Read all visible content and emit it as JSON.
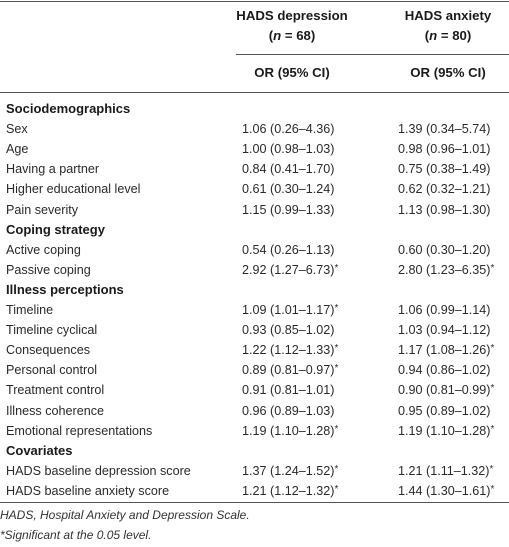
{
  "columns": [
    {
      "title": "HADS depression",
      "n_prefix": "(",
      "n_var": "n",
      "n_value": " = 68)",
      "stat": "OR (95% CI)"
    },
    {
      "title": "HADS anxiety",
      "n_prefix": "(",
      "n_var": "n",
      "n_value": " = 80)",
      "stat": "OR (95% CI)"
    }
  ],
  "sections": [
    {
      "title": "Sociodemographics",
      "rows": [
        {
          "label": "Sex",
          "v1": "1.06 (0.26–4.36)",
          "s1": "",
          "v2": "1.39 (0.34–5.74)",
          "s2": ""
        },
        {
          "label": "Age",
          "v1": "1.00 (0.98–1.03)",
          "s1": "",
          "v2": "0.98 (0.96–1.01)",
          "s2": ""
        },
        {
          "label": "Having a partner",
          "v1": "0.84 (0.41–1.70)",
          "s1": "",
          "v2": "0.75 (0.38–1.49)",
          "s2": ""
        },
        {
          "label": "Higher educational level",
          "v1": "0.61 (0.30–1.24)",
          "s1": "",
          "v2": "0.62 (0.32–1.21)",
          "s2": ""
        },
        {
          "label": "Pain severity",
          "v1": "1.15 (0.99–1.33)",
          "s1": "",
          "v2": "1.13 (0.98–1.30)",
          "s2": ""
        }
      ]
    },
    {
      "title": "Coping strategy",
      "rows": [
        {
          "label": "Active coping",
          "v1": "0.54 (0.26–1.13)",
          "s1": "",
          "v2": "0.60 (0.30–1.20)",
          "s2": ""
        },
        {
          "label": "Passive coping",
          "v1": "2.92 (1.27–6.73)",
          "s1": "*",
          "v2": "2.80 (1.23–6.35)",
          "s2": "*"
        }
      ]
    },
    {
      "title": "Illness perceptions",
      "rows": [
        {
          "label": "Timeline",
          "v1": "1.09 (1.01–1.17)",
          "s1": "*",
          "v2": "1.06 (0.99–1.14)",
          "s2": ""
        },
        {
          "label": "Timeline cyclical",
          "v1": "0.93 (0.85–1.02)",
          "s1": "",
          "v2": "1.03 (0.94–1.12)",
          "s2": ""
        },
        {
          "label": "Consequences",
          "v1": "1.22 (1.12–1.33)",
          "s1": "*",
          "v2": "1.17 (1.08–1.26)",
          "s2": "*"
        },
        {
          "label": "Personal control",
          "v1": "0.89 (0.81–0.97)",
          "s1": "*",
          "v2": "0.94 (0.86–1.02)",
          "s2": ""
        },
        {
          "label": "Treatment control",
          "v1": "0.91 (0.81–1.01)",
          "s1": "",
          "v2": "0.90 (0.81–0.99)",
          "s2": "*"
        },
        {
          "label": "Illness coherence",
          "v1": "0.96 (0.89–1.03)",
          "s1": "",
          "v2": "0.95 (0.89–1.02)",
          "s2": ""
        },
        {
          "label": "Emotional representations",
          "v1": "1.19 (1.10–1.28)",
          "s1": "*",
          "v2": "1.19 (1.10–1.28)",
          "s2": "*"
        }
      ]
    },
    {
      "title": "Covariates",
      "rows": [
        {
          "label": "HADS baseline depression score",
          "v1": "1.37 (1.24–1.52)",
          "s1": "*",
          "v2": "1.21 (1.11–1.32)",
          "s2": "*"
        },
        {
          "label": "HADS baseline anxiety score",
          "v1": "1.21 (1.12–1.32)",
          "s1": "*",
          "v2": "1.44 (1.30–1.61)",
          "s2": "*"
        }
      ]
    }
  ],
  "footnotes": [
    "HADS, Hospital Anxiety and Depression Scale.",
    "*Significant at the 0.05 level."
  ]
}
